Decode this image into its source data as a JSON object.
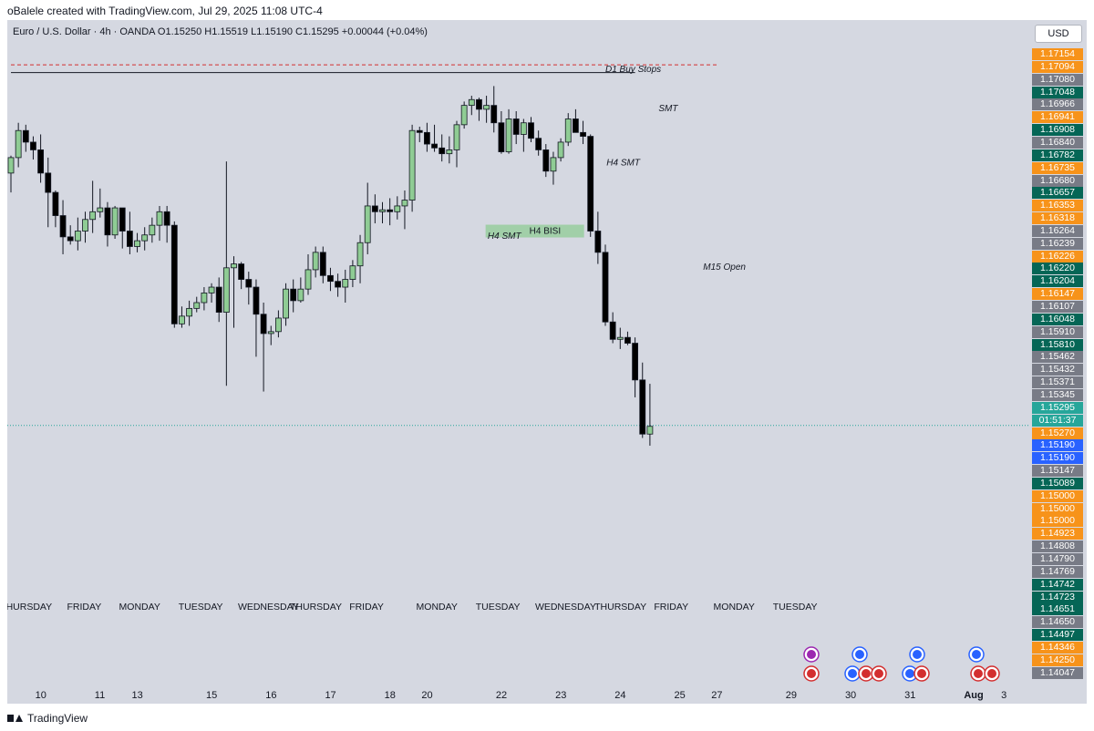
{
  "header": {
    "attribution": "oBalele created with TradingView.com, Jul 29, 2025 11:08 UTC-4"
  },
  "legend": {
    "text": "Euro / U.S. Dollar · 4h · OANDA  O1.15250  H1.15519  L1.15190  C1.15295  +0.00044 (+0.04%)"
  },
  "price_axis": {
    "currency": "USD",
    "price_min": 1.1395,
    "price_max": 1.1725,
    "tags": [
      {
        "label": "1.17154",
        "color": "#f7931a"
      },
      {
        "label": "1.17094",
        "color": "#f7931a"
      },
      {
        "label": "1.17080",
        "color": "#787b86"
      },
      {
        "label": "1.17048",
        "color": "#056656"
      },
      {
        "label": "1.16966",
        "color": "#787b86"
      },
      {
        "label": "1.16941",
        "color": "#f7931a"
      },
      {
        "label": "1.16908",
        "color": "#056656"
      },
      {
        "label": "1.16840",
        "color": "#787b86"
      },
      {
        "label": "1.16782",
        "color": "#056656"
      },
      {
        "label": "1.16735",
        "color": "#f7931a"
      },
      {
        "label": "1.16680",
        "color": "#787b86"
      },
      {
        "label": "1.16657",
        "color": "#056656"
      },
      {
        "label": "1.16353",
        "color": "#f7931a"
      },
      {
        "label": "1.16318",
        "color": "#f7931a"
      },
      {
        "label": "1.16264",
        "color": "#787b86"
      },
      {
        "label": "1.16239",
        "color": "#787b86"
      },
      {
        "label": "1.16226",
        "color": "#f7931a"
      },
      {
        "label": "1.16220",
        "color": "#056656"
      },
      {
        "label": "1.16204",
        "color": "#056656"
      },
      {
        "label": "1.16147",
        "color": "#f7931a"
      },
      {
        "label": "1.16107",
        "color": "#787b86"
      },
      {
        "label": "1.16048",
        "color": "#056656"
      },
      {
        "label": "1.15910",
        "color": "#787b86"
      },
      {
        "label": "1.15810",
        "color": "#056656"
      },
      {
        "label": "1.15462",
        "color": "#787b86"
      },
      {
        "label": "1.15432",
        "color": "#787b86"
      },
      {
        "label": "1.15371",
        "color": "#787b86"
      },
      {
        "label": "1.15345",
        "color": "#787b86"
      },
      {
        "label": "1.15295",
        "color": "#26a69a"
      },
      {
        "label": "01:51:37",
        "color": "#26a69a"
      },
      {
        "label": "1.15270",
        "color": "#f7931a"
      },
      {
        "label": "1.15190",
        "color": "#2962ff"
      },
      {
        "label": "1.15190",
        "color": "#2962ff"
      },
      {
        "label": "1.15147",
        "color": "#787b86"
      },
      {
        "label": "1.15089",
        "color": "#056656"
      },
      {
        "label": "1.15000",
        "color": "#f7931a"
      },
      {
        "label": "1.15000",
        "color": "#f7931a"
      },
      {
        "label": "1.15000",
        "color": "#f7931a"
      },
      {
        "label": "1.14923",
        "color": "#f7931a"
      },
      {
        "label": "1.14808",
        "color": "#787b86"
      },
      {
        "label": "1.14790",
        "color": "#787b86"
      },
      {
        "label": "1.14769",
        "color": "#787b86"
      },
      {
        "label": "1.14742",
        "color": "#056656"
      },
      {
        "label": "1.14723",
        "color": "#056656"
      },
      {
        "label": "1.14651",
        "color": "#056656"
      },
      {
        "label": "1.14650",
        "color": "#787b86"
      },
      {
        "label": "1.14497",
        "color": "#056656"
      },
      {
        "label": "1.14346",
        "color": "#f7931a"
      },
      {
        "label": "1.14250",
        "color": "#f7931a"
      },
      {
        "label": "1.14047",
        "color": "#787b86"
      }
    ]
  },
  "footer": {
    "brand": "TradingView"
  },
  "chart_data": {
    "type": "candlestick",
    "symbol": "Euro / U.S. Dollar",
    "interval": "4h",
    "exchange": "OANDA",
    "bull_color": "#8fcc94",
    "bear_color": "#000000",
    "current_price": 1.15295,
    "candles": [
      [
        1.166,
        1.1669,
        1.165,
        1.1668
      ],
      [
        1.1668,
        1.1686,
        1.1663,
        1.1682
      ],
      [
        1.1682,
        1.1685,
        1.1671,
        1.1676
      ],
      [
        1.1676,
        1.1679,
        1.1667,
        1.1672
      ],
      [
        1.1672,
        1.168,
        1.1655,
        1.166
      ],
      [
        1.166,
        1.1668,
        1.1632,
        1.165
      ],
      [
        1.165,
        1.1651,
        1.1632,
        1.1638
      ],
      [
        1.1638,
        1.1646,
        1.1618,
        1.1627
      ],
      [
        1.1627,
        1.1633,
        1.1623,
        1.1625
      ],
      [
        1.1625,
        1.1637,
        1.162,
        1.163
      ],
      [
        1.163,
        1.164,
        1.1624,
        1.1636
      ],
      [
        1.1636,
        1.1656,
        1.1629,
        1.164
      ],
      [
        1.164,
        1.1652,
        1.1637,
        1.1642
      ],
      [
        1.1642,
        1.1645,
        1.1622,
        1.1628
      ],
      [
        1.1628,
        1.1643,
        1.1626,
        1.1642
      ],
      [
        1.1642,
        1.1642,
        1.1621,
        1.163
      ],
      [
        1.163,
        1.164,
        1.1618,
        1.1622
      ],
      [
        1.1622,
        1.1629,
        1.1619,
        1.1625
      ],
      [
        1.1625,
        1.1632,
        1.162,
        1.1628
      ],
      [
        1.1628,
        1.1637,
        1.1624,
        1.1633
      ],
      [
        1.1633,
        1.1643,
        1.1625,
        1.164
      ],
      [
        1.164,
        1.1643,
        1.1624,
        1.1633
      ],
      [
        1.1633,
        1.1635,
        1.158,
        1.1582
      ],
      [
        1.1582,
        1.1591,
        1.158,
        1.1586
      ],
      [
        1.1586,
        1.1594,
        1.1581,
        1.159
      ],
      [
        1.159,
        1.1596,
        1.1588,
        1.1593
      ],
      [
        1.1593,
        1.1601,
        1.1589,
        1.1598
      ],
      [
        1.1598,
        1.1603,
        1.1593,
        1.1601
      ],
      [
        1.1601,
        1.1606,
        1.1583,
        1.1588
      ],
      [
        1.1588,
        1.1666,
        1.155,
        1.1611
      ],
      [
        1.1611,
        1.1617,
        1.158,
        1.1613
      ],
      [
        1.1613,
        1.1614,
        1.16,
        1.1605
      ],
      [
        1.1605,
        1.1609,
        1.1592,
        1.1601
      ],
      [
        1.1601,
        1.1605,
        1.1565,
        1.1587
      ],
      [
        1.1587,
        1.1593,
        1.1547,
        1.1577
      ],
      [
        1.1577,
        1.1581,
        1.1571,
        1.1578
      ],
      [
        1.1578,
        1.1589,
        1.1575,
        1.1585
      ],
      [
        1.1585,
        1.1603,
        1.1581,
        1.16
      ],
      [
        1.16,
        1.1605,
        1.1588,
        1.1594
      ],
      [
        1.1594,
        1.1606,
        1.1593,
        1.16
      ],
      [
        1.16,
        1.1618,
        1.1597,
        1.161
      ],
      [
        1.161,
        1.1622,
        1.1606,
        1.1619
      ],
      [
        1.1619,
        1.1622,
        1.1603,
        1.1607
      ],
      [
        1.1607,
        1.1611,
        1.1599,
        1.1604
      ],
      [
        1.1604,
        1.1608,
        1.1596,
        1.1601
      ],
      [
        1.1601,
        1.161,
        1.1593,
        1.1605
      ],
      [
        1.1605,
        1.1615,
        1.1601,
        1.1612
      ],
      [
        1.1612,
        1.1628,
        1.1603,
        1.1624
      ],
      [
        1.1624,
        1.1655,
        1.1618,
        1.1643
      ],
      [
        1.1643,
        1.1649,
        1.1634,
        1.164
      ],
      [
        1.164,
        1.1645,
        1.1634,
        1.1641
      ],
      [
        1.1641,
        1.1647,
        1.1633,
        1.164
      ],
      [
        1.164,
        1.1648,
        1.1636,
        1.1643
      ],
      [
        1.1643,
        1.1651,
        1.1631,
        1.1646
      ],
      [
        1.1646,
        1.1685,
        1.164,
        1.1682
      ],
      [
        1.1682,
        1.1684,
        1.1676,
        1.1681
      ],
      [
        1.1681,
        1.1686,
        1.1671,
        1.1675
      ],
      [
        1.1675,
        1.1685,
        1.1671,
        1.1673
      ],
      [
        1.1673,
        1.168,
        1.1666,
        1.167
      ],
      [
        1.167,
        1.1679,
        1.1665,
        1.1672
      ],
      [
        1.1672,
        1.1687,
        1.1663,
        1.1685
      ],
      [
        1.1685,
        1.1697,
        1.1683,
        1.1695
      ],
      [
        1.1695,
        1.17,
        1.169,
        1.1698
      ],
      [
        1.1698,
        1.1699,
        1.1687,
        1.1693
      ],
      [
        1.1693,
        1.17,
        1.1686,
        1.1695
      ],
      [
        1.1695,
        1.1705,
        1.1681,
        1.1686
      ],
      [
        1.1686,
        1.1692,
        1.167,
        1.1671
      ],
      [
        1.1671,
        1.1693,
        1.167,
        1.1688
      ],
      [
        1.1688,
        1.1692,
        1.1675,
        1.168
      ],
      [
        1.168,
        1.1688,
        1.1671,
        1.1686
      ],
      [
        1.1686,
        1.1689,
        1.1676,
        1.1678
      ],
      [
        1.1678,
        1.1682,
        1.1669,
        1.1672
      ],
      [
        1.1672,
        1.1675,
        1.1658,
        1.1661
      ],
      [
        1.1661,
        1.1671,
        1.1654,
        1.1668
      ],
      [
        1.1668,
        1.1678,
        1.1666,
        1.1676
      ],
      [
        1.1676,
        1.1691,
        1.1674,
        1.1688
      ],
      [
        1.1688,
        1.1693,
        1.1681,
        1.1681
      ],
      [
        1.1681,
        1.1687,
        1.1675,
        1.1679
      ],
      [
        1.1679,
        1.168,
        1.1627,
        1.163
      ],
      [
        1.163,
        1.164,
        1.1613,
        1.1619
      ],
      [
        1.1619,
        1.1623,
        1.1581,
        1.1583
      ],
      [
        1.1583,
        1.1588,
        1.1572,
        1.1574
      ],
      [
        1.1574,
        1.158,
        1.1569,
        1.1575
      ],
      [
        1.1575,
        1.1578,
        1.1571,
        1.1572
      ],
      [
        1.1572,
        1.1575,
        1.1544,
        1.1553
      ],
      [
        1.1553,
        1.1562,
        1.1523,
        1.1525
      ],
      [
        1.1525,
        1.1551,
        1.1519,
        1.1529
      ]
    ],
    "x_ticks": [
      {
        "index": 1,
        "label": "THURSDAY"
      },
      {
        "index": 10,
        "label": "FRIDAY"
      },
      {
        "index": 17,
        "label": "MONDAY"
      },
      {
        "index": 25,
        "label": "TUESDAY"
      },
      {
        "index": 33,
        "label": "WEDNESDAY"
      },
      {
        "index": 40,
        "label": "THURSDAY"
      },
      {
        "index": 48,
        "label": "FRIDAY"
      },
      {
        "index": 57,
        "label": "MONDAY"
      },
      {
        "index": 65,
        "label": "TUESDAY"
      },
      {
        "index": 73,
        "label": "WEDNESDAY"
      },
      {
        "index": 81,
        "label": "THURSDAY"
      },
      {
        "index": 89,
        "label": "FRIDAY"
      },
      {
        "index": 97,
        "label": "MONDAY"
      },
      {
        "index": 105,
        "label": "TUESDAY"
      }
    ],
    "date_ticks": [
      {
        "index": 4,
        "label": "10"
      },
      {
        "index": 12,
        "label": "11"
      },
      {
        "index": 17,
        "label": "13"
      },
      {
        "index": 27,
        "label": "15"
      },
      {
        "index": 35,
        "label": "16"
      },
      {
        "index": 43,
        "label": "17"
      },
      {
        "index": 51,
        "label": "18"
      },
      {
        "index": 56,
        "label": "20"
      },
      {
        "index": 66,
        "label": "22"
      },
      {
        "index": 74,
        "label": "23"
      },
      {
        "index": 82,
        "label": "24"
      },
      {
        "index": 90,
        "label": "25"
      },
      {
        "index": 95,
        "label": "27"
      },
      {
        "index": 105,
        "label": "29"
      },
      {
        "index": 113,
        "label": "30"
      },
      {
        "index": 121,
        "label": "31"
      },
      {
        "index": 129,
        "label": "Aug"
      },
      {
        "index": 134,
        "label": "3"
      }
    ],
    "annotations": [
      {
        "text": "D1 Buy Stops",
        "type": "dashed-level",
        "price": 1.1716,
        "start_index": 0,
        "end_index": 95
      },
      {
        "text": "",
        "type": "solid-level",
        "price": 1.1712,
        "start_index": 0,
        "end_index": 84
      },
      {
        "text": "H4 SMT",
        "type": "label",
        "index": 82,
        "price": 1.1664
      },
      {
        "text": "SMT",
        "type": "label",
        "index": 89,
        "price": 1.1692
      },
      {
        "text": "H4 SMT",
        "type": "label",
        "index": 66,
        "price": 1.1626
      },
      {
        "text": "H4 BISI",
        "type": "box",
        "index": 71,
        "price": 1.163
      },
      {
        "text": "M15 Open",
        "type": "label",
        "index": 95,
        "price": 1.161
      }
    ]
  }
}
